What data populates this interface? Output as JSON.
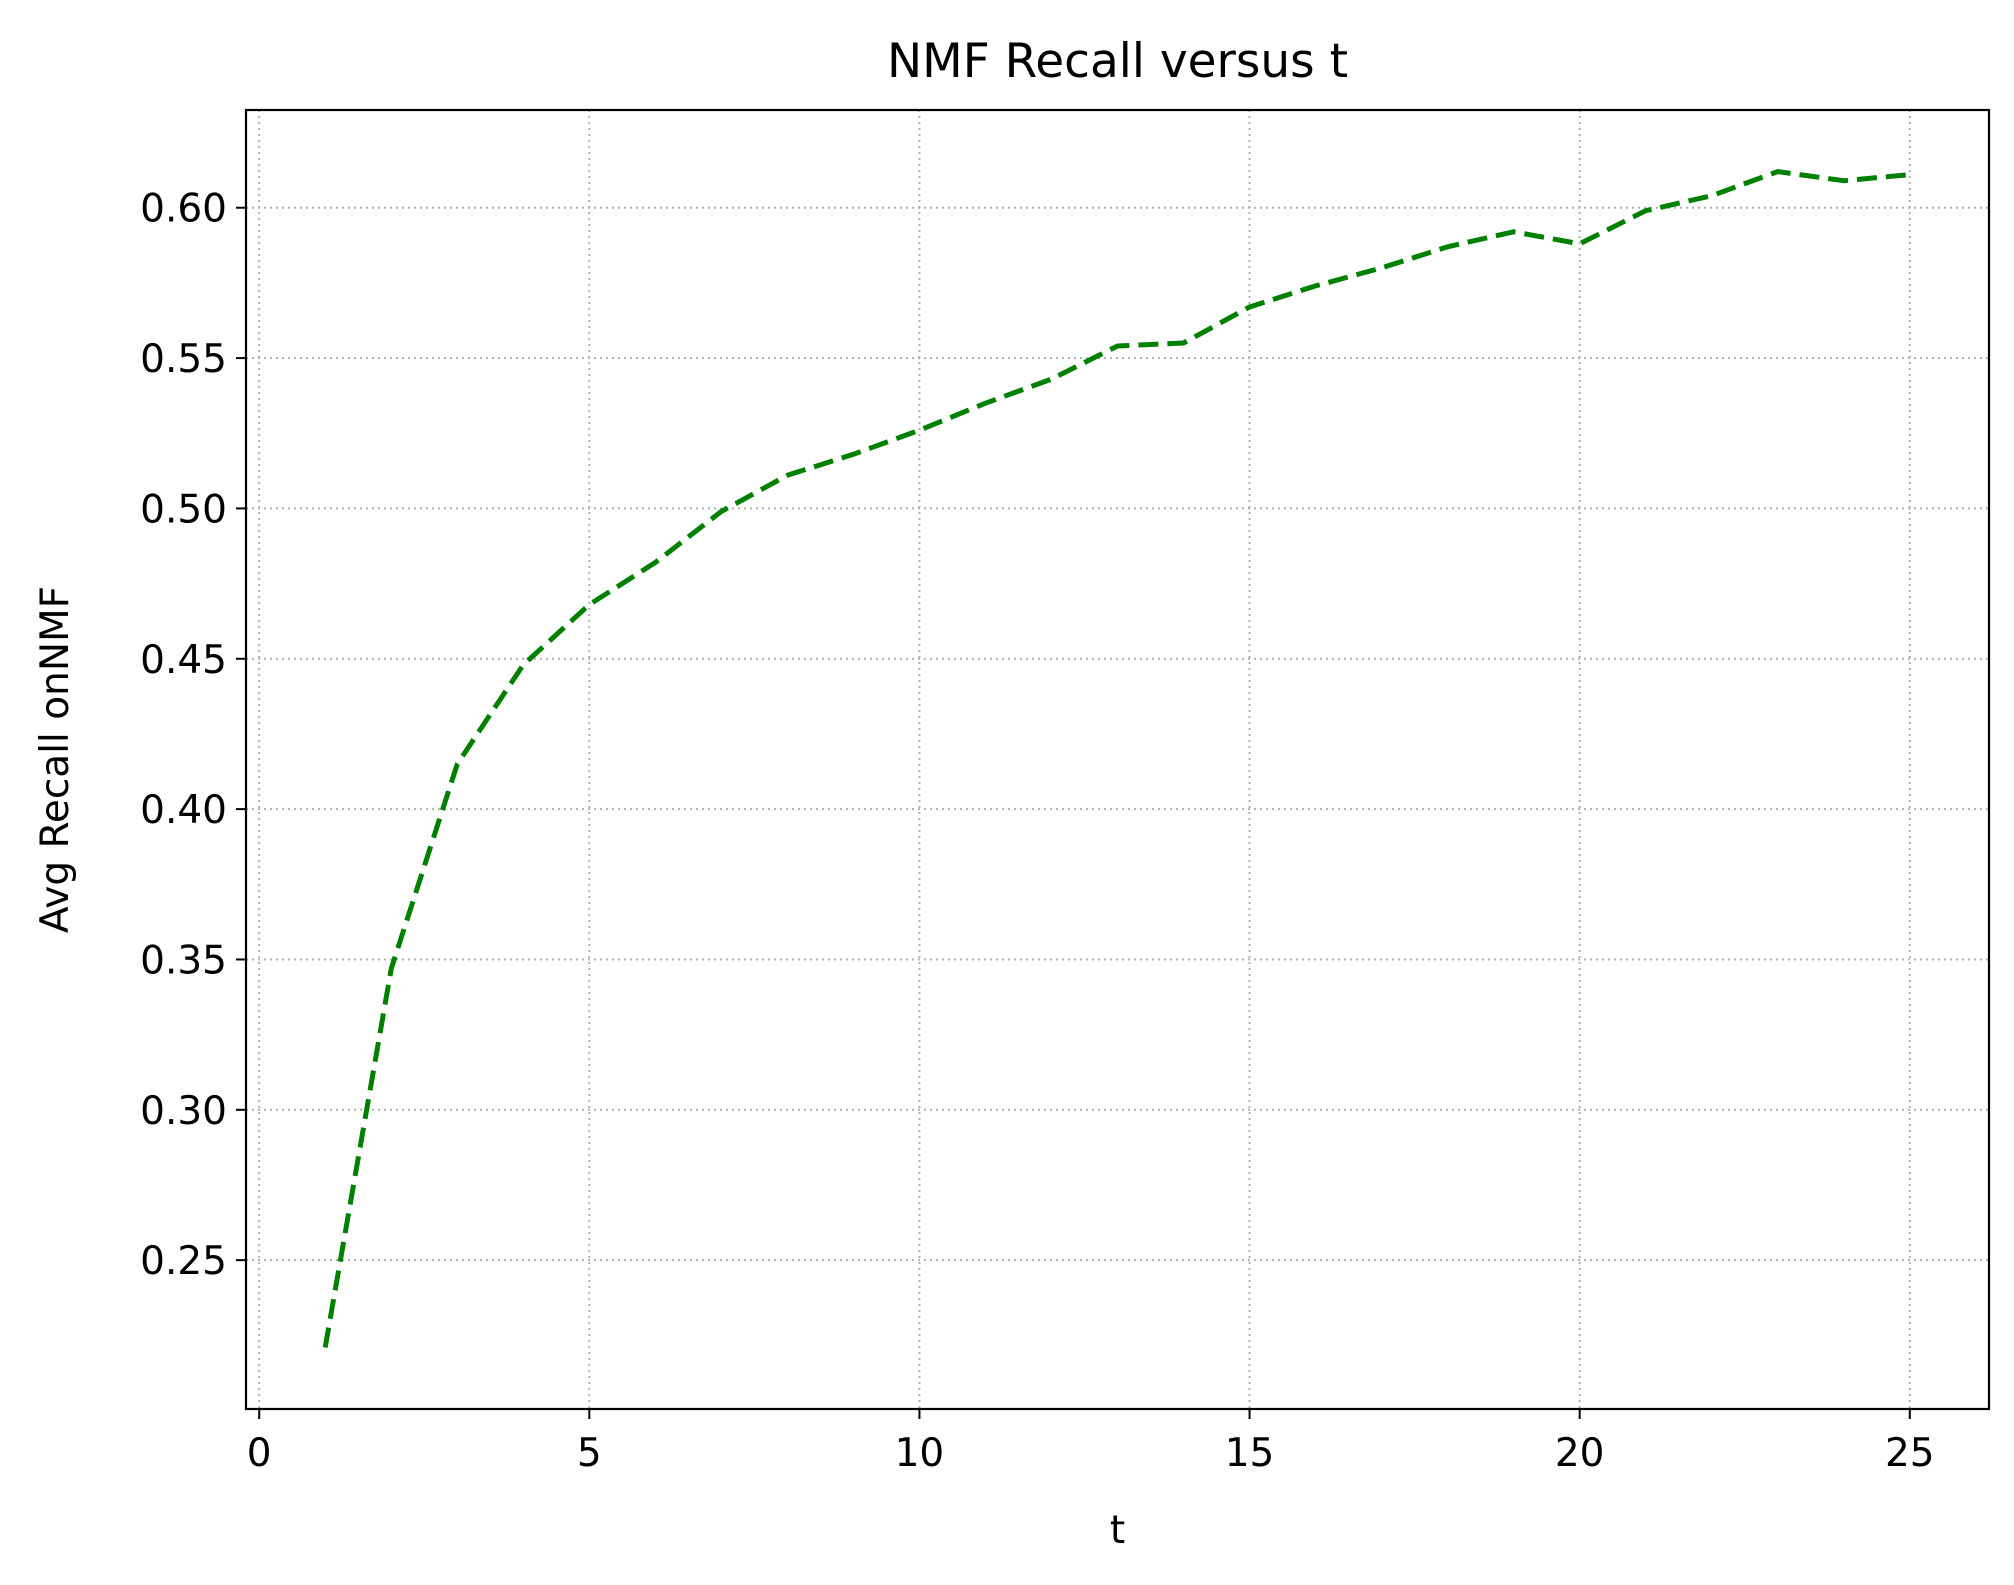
{
  "chart_data": {
    "type": "line",
    "title": "NMF Recall versus t",
    "xlabel": "t",
    "ylabel": "Avg Recall onNMF",
    "xlim": [
      -0.2,
      26.2
    ],
    "ylim": [
      0.2005,
      0.6325
    ],
    "xticks": [
      0,
      5,
      10,
      15,
      20,
      25
    ],
    "yticks": [
      0.25,
      0.3,
      0.35,
      0.4,
      0.45,
      0.5,
      0.55,
      0.6
    ],
    "xtick_labels": [
      "0",
      "5",
      "10",
      "15",
      "20",
      "25"
    ],
    "ytick_labels": [
      "0.25",
      "0.30",
      "0.35",
      "0.40",
      "0.45",
      "0.50",
      "0.55",
      "0.60"
    ],
    "grid": true,
    "series": [
      {
        "color": "#008000",
        "line_style": "dashed",
        "x": [
          1,
          2,
          3,
          4,
          5,
          6,
          7,
          8,
          9,
          10,
          11,
          12,
          13,
          14,
          15,
          16,
          17,
          18,
          19,
          20,
          21,
          22,
          23,
          24,
          25
        ],
        "y": [
          0.221,
          0.347,
          0.415,
          0.448,
          0.468,
          0.482,
          0.499,
          0.511,
          0.518,
          0.526,
          0.535,
          0.543,
          0.554,
          0.555,
          0.567,
          0.574,
          0.58,
          0.587,
          0.592,
          0.588,
          0.599,
          0.604,
          0.612,
          0.609,
          0.611
        ]
      }
    ]
  }
}
